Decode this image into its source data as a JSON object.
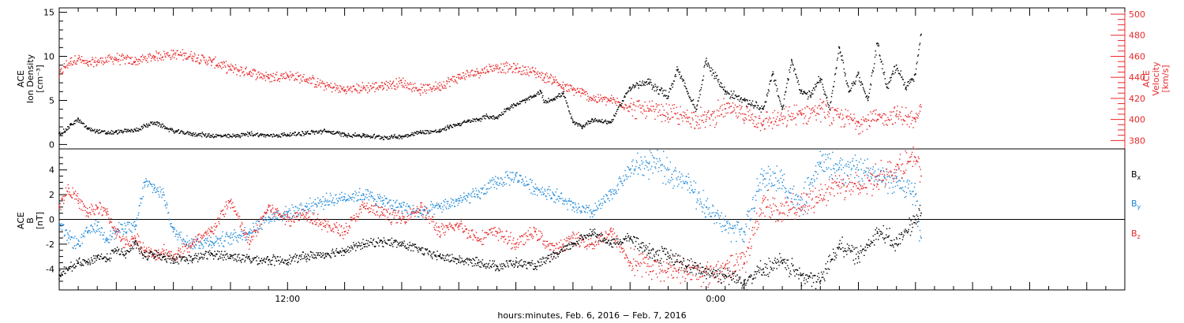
{
  "chart_data": [
    {
      "type": "scatter",
      "title": "",
      "panel": "top",
      "ylabel_lines": [
        "ACE",
        "Ion Density",
        "[cm⁻³]"
      ],
      "ylabel_right_lines": [
        "ACE",
        "Velocity",
        "[km/s]"
      ],
      "ylim": [
        -0.5,
        15.5
      ],
      "yticks": [
        0,
        5,
        10,
        15
      ],
      "y2lim": [
        372,
        506
      ],
      "y2ticks": [
        380,
        400,
        420,
        440,
        460,
        480,
        500
      ],
      "colors": {
        "density": "#000000",
        "velocity": "#e8282a"
      },
      "series": [
        {
          "name": "",
          "axis": "left",
          "color": "#000000",
          "x": [
            0,
            0.3,
            0.6,
            1,
            1.5,
            2,
            2.5,
            3,
            4,
            5,
            6,
            7,
            8,
            9,
            10,
            11,
            12,
            13,
            14,
            15,
            16,
            17,
            18,
            19,
            20,
            20.5,
            21,
            21.5,
            22,
            22.5,
            23,
            23.5,
            24,
            24.5,
            25,
            25.3,
            25.5,
            26,
            26.5,
            27,
            27.5,
            28,
            29,
            30,
            31,
            32,
            32.5,
            33,
            33.5,
            34,
            35,
            36,
            37,
            37.5,
            38,
            38.5,
            39,
            39.5,
            40,
            40.5,
            41,
            41.5,
            42,
            42.5,
            43,
            43.5,
            44,
            44.5,
            45,
            45.3
          ],
          "y": [
            1.3,
            1.5,
            2.2,
            2.8,
            1.8,
            1.5,
            1.3,
            1.4,
            1.6,
            2.5,
            1.5,
            1.2,
            1.0,
            0.9,
            1.2,
            1.0,
            1.1,
            1.3,
            1.5,
            1.1,
            1.0,
            0.8,
            0.9,
            1.4,
            1.5,
            2.0,
            2.3,
            2.6,
            2.8,
            3.2,
            3.0,
            4.0,
            4.5,
            5.0,
            5.5,
            6.0,
            4.8,
            5.2,
            5.8,
            2.5,
            2.0,
            2.8,
            2.5,
            6.5,
            7.0,
            5.5,
            8.5,
            6.0,
            4.0,
            9.5,
            6.0,
            5.0,
            4.0,
            8.0,
            4.0,
            9.5,
            6.0,
            5.5,
            7.5,
            4.0,
            11.0,
            6.0,
            8.0,
            5.0,
            11.5,
            6.5,
            9.0,
            6.5,
            8.0,
            12.5
          ]
        },
        {
          "name": "",
          "axis": "right",
          "color": "#e8282a",
          "x": [
            0,
            0.3,
            0.6,
            1,
            1.5,
            2,
            3,
            4,
            5,
            6,
            7,
            8,
            9,
            10,
            11,
            12,
            13,
            14,
            15,
            16,
            17,
            18,
            19,
            20,
            21,
            22,
            23,
            24,
            25,
            25.5,
            26,
            26.5,
            27,
            27.5,
            28,
            29,
            30,
            31,
            32,
            33,
            34,
            35,
            36,
            37,
            38,
            39,
            40,
            41,
            42,
            43,
            44,
            45,
            45.3
          ],
          "y": [
            442,
            450,
            455,
            458,
            452,
            455,
            458,
            455,
            460,
            462,
            460,
            455,
            448,
            445,
            440,
            442,
            438,
            432,
            428,
            430,
            432,
            435,
            428,
            432,
            440,
            445,
            450,
            448,
            445,
            440,
            438,
            430,
            428,
            425,
            420,
            418,
            412,
            408,
            405,
            402,
            400,
            410,
            405,
            398,
            400,
            405,
            410,
            402,
            398,
            400,
            405,
            398,
            412
          ]
        }
      ]
    },
    {
      "type": "scatter",
      "title": "",
      "panel": "bottom",
      "ylabel_lines": [
        "ACE",
        "B",
        "[nT]"
      ],
      "ylim": [
        -5.7,
        5.7
      ],
      "yticks": [
        -4,
        -2,
        0,
        2,
        4
      ],
      "xlabel": "hours:minutes, Feb.  6, 2016 − Feb.  7, 2016",
      "xlim": [
        0,
        56
      ],
      "xticks": [
        {
          "value": 12,
          "label": "12:00"
        },
        {
          "value": 34.5,
          "label": "0:00"
        }
      ],
      "colors": {
        "bx": "#000000",
        "by": "#1e88d8",
        "bz": "#e8282a"
      },
      "series": [
        {
          "name": "Bx",
          "color": "#000000",
          "x": [
            0,
            0.5,
            1,
            1.5,
            2,
            2.5,
            3,
            3.5,
            4,
            4.5,
            5,
            5.5,
            6,
            7,
            8,
            9,
            10,
            11,
            12,
            13,
            14,
            15,
            16,
            17,
            18,
            19,
            20,
            21,
            22,
            23,
            24,
            25,
            26,
            27,
            28,
            29,
            30,
            31,
            32,
            33,
            34,
            35,
            36,
            37,
            38,
            39,
            40,
            41,
            42,
            43,
            44,
            45,
            45.3
          ],
          "y": [
            -4.5,
            -4,
            -3.5,
            -3.5,
            -3,
            -3.2,
            -2.5,
            -2.8,
            -2,
            -3,
            -2.8,
            -3,
            -3.2,
            -3.2,
            -2.8,
            -3,
            -3.2,
            -3.3,
            -3.3,
            -3,
            -2.8,
            -2.5,
            -2,
            -1.8,
            -2,
            -2.5,
            -3,
            -3.3,
            -3.5,
            -3.8,
            -3.5,
            -3.8,
            -3,
            -2,
            -1,
            -2,
            -1.5,
            -2.5,
            -3,
            -3.8,
            -4.2,
            -4.5,
            -5,
            -4,
            -3.5,
            -4.5,
            -5,
            -2,
            -3,
            -1,
            -2,
            0,
            0.5
          ]
        },
        {
          "name": "By",
          "color": "#1e88d8",
          "x": [
            0,
            0.5,
            1,
            1.5,
            2,
            2.5,
            3,
            3.5,
            4,
            4.5,
            5,
            5.5,
            6,
            7,
            8,
            9,
            10,
            11,
            12,
            13,
            14,
            15,
            16,
            17,
            18,
            19,
            20,
            21,
            22,
            23,
            24,
            25,
            26,
            27,
            28,
            29,
            30,
            31,
            32,
            33,
            34,
            35,
            36,
            37,
            38,
            39,
            40,
            41,
            42,
            43,
            44,
            45,
            45.3
          ],
          "y": [
            -0.5,
            -1.5,
            -2,
            -1,
            -0.5,
            -1.5,
            -1,
            -0.5,
            -0.8,
            3,
            2.5,
            2,
            -1,
            -2,
            -1.8,
            -1.5,
            -1,
            0.2,
            0.5,
            1,
            1.5,
            1.8,
            2,
            1.5,
            1,
            0.5,
            1,
            1.5,
            2,
            3,
            3.5,
            2.5,
            2,
            1,
            0.5,
            2,
            4,
            4.5,
            4,
            3,
            1,
            -0.5,
            -1,
            3.5,
            3,
            1,
            4.5,
            4.2,
            4,
            3.5,
            3,
            2,
            -1.5
          ]
        },
        {
          "name": "Bz",
          "color": "#e8282a",
          "x": [
            0,
            0.5,
            1,
            1.5,
            2,
            2.5,
            3,
            3.5,
            4,
            4.5,
            5,
            5.5,
            6,
            7,
            8,
            9,
            10,
            11,
            12,
            13,
            14,
            15,
            16,
            17,
            18,
            19,
            20,
            21,
            22,
            23,
            24,
            25,
            26,
            27,
            28,
            29,
            30,
            31,
            32,
            33,
            34,
            35,
            36,
            37,
            38,
            39,
            40,
            41,
            42,
            43,
            44,
            45,
            45.3
          ],
          "y": [
            1,
            2.5,
            1.5,
            0.5,
            1,
            0.5,
            -1,
            -2,
            -1.5,
            -2.5,
            -3,
            -2.5,
            -3,
            -2,
            -1,
            1.5,
            -2,
            1,
            0,
            0.5,
            -0.5,
            -1,
            1,
            0.5,
            0,
            1,
            -1,
            -0.5,
            -1.5,
            -1,
            -2,
            -1,
            -2.5,
            -1.5,
            -2,
            -1,
            -3.5,
            -3.8,
            -4,
            -4.2,
            -4.3,
            -4,
            -3.5,
            1.5,
            0.5,
            1,
            2,
            3,
            2.5,
            3.5,
            4,
            5,
            3.5
          ]
        }
      ],
      "legend_position": "right"
    }
  ]
}
